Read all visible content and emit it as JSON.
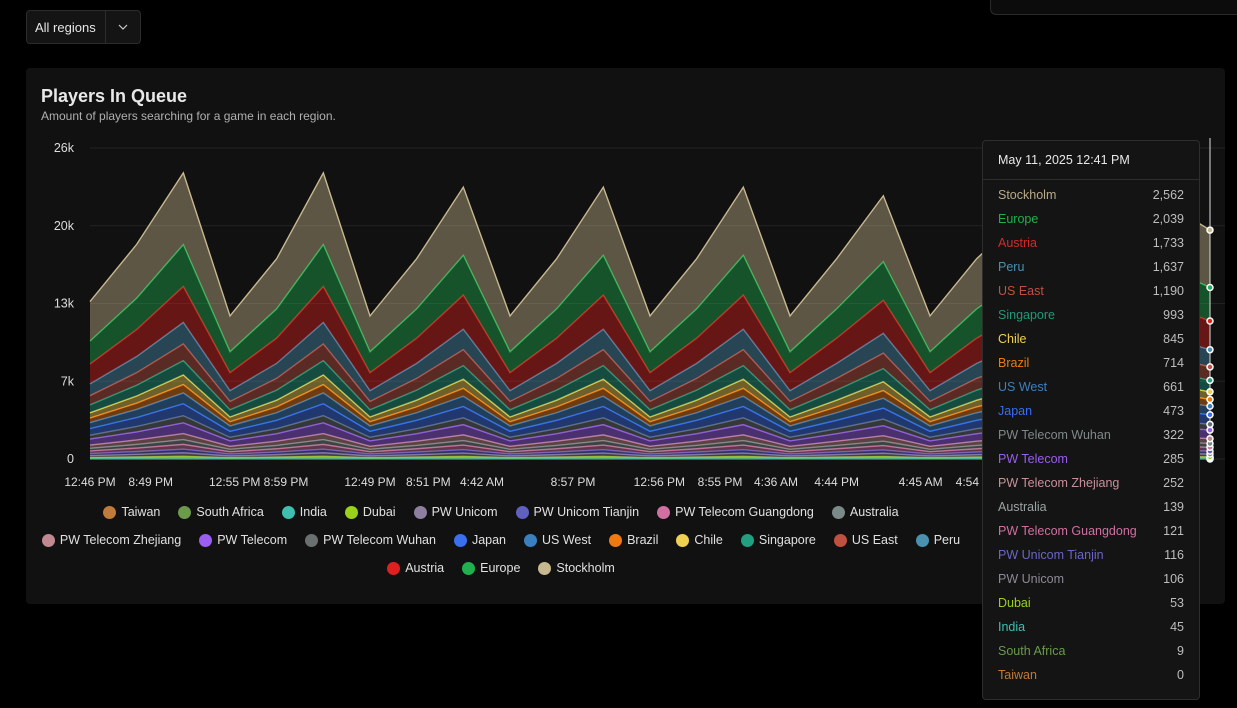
{
  "filter": {
    "label": "All regions",
    "icon": "chevron-down-icon"
  },
  "card": {
    "title": "Players In Queue",
    "subtitle": "Amount of players searching for a game in each region."
  },
  "tooltip": {
    "time": "May 11, 2025 12:41 PM",
    "rows": [
      {
        "name": "Stockholm",
        "value": "2,562",
        "color": "#b8ab8a"
      },
      {
        "name": "Europe",
        "value": "2,039",
        "color": "#22b04e"
      },
      {
        "name": "Austria",
        "value": "1,733",
        "color": "#d42a2a"
      },
      {
        "name": "Peru",
        "value": "1,637",
        "color": "#4a90b0"
      },
      {
        "name": "US East",
        "value": "1,190",
        "color": "#c05040"
      },
      {
        "name": "Singapore",
        "value": "993",
        "color": "#1f9a78"
      },
      {
        "name": "Chile",
        "value": "845",
        "color": "#f0d050"
      },
      {
        "name": "Brazil",
        "value": "714",
        "color": "#f07a10"
      },
      {
        "name": "US West",
        "value": "661",
        "color": "#3a80c0"
      },
      {
        "name": "Japan",
        "value": "473",
        "color": "#3a6ef0"
      },
      {
        "name": "PW Telecom Wuhan",
        "value": "322",
        "color": "#808888"
      },
      {
        "name": "PW Telecom",
        "value": "285",
        "color": "#9a5ef0"
      },
      {
        "name": "PW Telecom Zhejiang",
        "value": "252",
        "color": "#c8909a"
      },
      {
        "name": "Australia",
        "value": "139",
        "color": "#9aa4a2"
      },
      {
        "name": "PW Telecom Guangdong",
        "value": "121",
        "color": "#d070a0"
      },
      {
        "name": "PW Unicom Tianjin",
        "value": "116",
        "color": "#6a66c8"
      },
      {
        "name": "PW Unicom",
        "value": "106",
        "color": "#8e8a96"
      },
      {
        "name": "Dubai",
        "value": "53",
        "color": "#9ad21a"
      },
      {
        "name": "India",
        "value": "45",
        "color": "#3fbfb0"
      },
      {
        "name": "South Africa",
        "value": "9",
        "color": "#6a9a4a"
      },
      {
        "name": "Taiwan",
        "value": "0",
        "color": "#c07a3a"
      }
    ]
  },
  "chart_data": {
    "type": "area",
    "stacked": true,
    "title": "Players In Queue",
    "subtitle": "Amount of players searching for a game in each region.",
    "ylim": [
      0,
      26000
    ],
    "y_ticks": [
      {
        "value": 0,
        "label": "0"
      },
      {
        "value": 6500,
        "label": "7k"
      },
      {
        "value": 13000,
        "label": "13k"
      },
      {
        "value": 19500,
        "label": "20k"
      },
      {
        "value": 26000,
        "label": "26k"
      }
    ],
    "x_ticks": [
      {
        "at": 0,
        "label": "12:46 PM"
      },
      {
        "at": 1.3,
        "label": "8:49 PM"
      },
      {
        "at": 3.1,
        "label": "12:55 PM"
      },
      {
        "at": 4.2,
        "label": "8:59 PM"
      },
      {
        "at": 6.0,
        "label": "12:49 PM"
      },
      {
        "at": 7.25,
        "label": "8:51 PM"
      },
      {
        "at": 8.4,
        "label": "4:42 AM"
      },
      {
        "at": 10.35,
        "label": "8:57 PM"
      },
      {
        "at": 12.2,
        "label": "12:56 PM"
      },
      {
        "at": 13.5,
        "label": "8:55 PM"
      },
      {
        "at": 14.7,
        "label": "4:36 AM"
      },
      {
        "at": 16.0,
        "label": "4:44 PM"
      },
      {
        "at": 17.8,
        "label": "4:45 AM"
      },
      {
        "at": 18.8,
        "label": "4:54"
      }
    ],
    "grid": true,
    "legend": "bottom",
    "series": [
      {
        "name": "Taiwan",
        "color": "#c07a3a",
        "values": [
          2,
          2,
          2,
          2,
          2,
          2,
          2,
          2,
          2,
          2,
          2,
          2,
          2,
          2,
          2,
          2,
          2,
          2,
          2,
          2,
          2,
          2,
          2,
          2,
          2
        ]
      },
      {
        "name": "South Africa",
        "color": "#6a9a4a",
        "values": [
          11,
          15,
          20,
          10,
          14,
          20,
          10,
          14,
          19,
          10,
          14,
          19,
          10,
          14,
          19,
          10,
          14,
          18,
          10,
          14,
          17,
          10,
          14,
          18,
          16
        ]
      },
      {
        "name": "India",
        "color": "#3fbfb0",
        "values": [
          55,
          75,
          100,
          50,
          70,
          100,
          50,
          70,
          95,
          50,
          70,
          95,
          50,
          70,
          95,
          50,
          70,
          92,
          50,
          70,
          85,
          50,
          70,
          90,
          80
        ]
      },
      {
        "name": "Dubai",
        "color": "#9ad21a",
        "values": [
          55,
          75,
          100,
          50,
          70,
          100,
          50,
          70,
          95,
          50,
          70,
          95,
          50,
          70,
          95,
          50,
          70,
          92,
          50,
          70,
          85,
          50,
          70,
          90,
          80
        ]
      },
      {
        "name": "PW Unicom",
        "color": "#8e7fa0",
        "values": [
          165,
          225,
          300,
          150,
          210,
          300,
          150,
          210,
          285,
          150,
          210,
          285,
          150,
          210,
          285,
          150,
          210,
          276,
          150,
          210,
          255,
          150,
          210,
          270,
          240
        ]
      },
      {
        "name": "PW Unicom Tianjin",
        "color": "#6060c0",
        "values": [
          165,
          225,
          300,
          150,
          210,
          300,
          150,
          210,
          285,
          150,
          210,
          285,
          150,
          210,
          285,
          150,
          210,
          276,
          150,
          210,
          255,
          150,
          210,
          270,
          240
        ]
      },
      {
        "name": "PW Telecom Guangdong",
        "color": "#d070a0",
        "values": [
          220,
          300,
          400,
          200,
          280,
          400,
          200,
          280,
          380,
          200,
          280,
          380,
          200,
          280,
          380,
          200,
          280,
          368,
          200,
          280,
          340,
          200,
          280,
          360,
          320
        ]
      },
      {
        "name": "Australia",
        "color": "#7a8a88",
        "values": [
          220,
          300,
          400,
          200,
          280,
          400,
          200,
          280,
          380,
          200,
          280,
          380,
          200,
          280,
          380,
          200,
          280,
          368,
          200,
          280,
          340,
          200,
          280,
          360,
          320
        ]
      },
      {
        "name": "PW Telecom Zhejiang",
        "color": "#c08890",
        "values": [
          275,
          375,
          500,
          250,
          350,
          500,
          250,
          350,
          475,
          250,
          350,
          475,
          250,
          350,
          475,
          250,
          350,
          460,
          250,
          350,
          425,
          250,
          350,
          450,
          400
        ]
      },
      {
        "name": "PW Telecom",
        "color": "#9a5ef0",
        "values": [
          495,
          675,
          900,
          450,
          630,
          900,
          450,
          630,
          855,
          450,
          630,
          855,
          450,
          630,
          855,
          450,
          630,
          828,
          450,
          630,
          765,
          450,
          630,
          810,
          720
        ]
      },
      {
        "name": "PW Telecom Wuhan",
        "color": "#6a7070",
        "values": [
          330,
          450,
          600,
          300,
          420,
          600,
          300,
          420,
          570,
          300,
          420,
          570,
          300,
          420,
          570,
          300,
          420,
          552,
          300,
          420,
          510,
          300,
          420,
          540,
          480
        ]
      },
      {
        "name": "Japan",
        "color": "#3a70f0",
        "values": [
          550,
          750,
          1000,
          500,
          700,
          1000,
          500,
          700,
          950,
          500,
          700,
          950,
          500,
          700,
          950,
          500,
          700,
          920,
          500,
          700,
          850,
          500,
          700,
          900,
          800
        ]
      },
      {
        "name": "US West",
        "color": "#3a80c0",
        "values": [
          495,
          675,
          900,
          450,
          630,
          900,
          450,
          630,
          855,
          450,
          630,
          855,
          450,
          630,
          855,
          450,
          630,
          828,
          450,
          630,
          765,
          450,
          630,
          810,
          720
        ]
      },
      {
        "name": "Brazil",
        "color": "#f07a10",
        "values": [
          385,
          525,
          700,
          350,
          490,
          700,
          350,
          490,
          665,
          350,
          490,
          665,
          350,
          490,
          665,
          350,
          490,
          644,
          350,
          490,
          595,
          350,
          490,
          630,
          560
        ]
      },
      {
        "name": "Chile",
        "color": "#f0d050",
        "values": [
          440,
          600,
          800,
          400,
          560,
          800,
          400,
          560,
          760,
          400,
          560,
          760,
          400,
          560,
          760,
          400,
          560,
          736,
          400,
          560,
          680,
          400,
          560,
          720,
          640
        ]
      },
      {
        "name": "Singapore",
        "color": "#20a080",
        "values": [
          660,
          900,
          1200,
          600,
          840,
          1200,
          600,
          840,
          1140,
          600,
          840,
          1140,
          600,
          840,
          1140,
          600,
          840,
          1104,
          600,
          840,
          1020,
          600,
          840,
          1080,
          960
        ]
      },
      {
        "name": "US East",
        "color": "#c05040",
        "values": [
          770,
          1050,
          1400,
          700,
          980,
          1400,
          700,
          980,
          1330,
          700,
          980,
          1330,
          700,
          980,
          1330,
          700,
          980,
          1288,
          700,
          980,
          1190,
          700,
          980,
          1260,
          1120
        ]
      },
      {
        "name": "Peru",
        "color": "#4a90b0",
        "values": [
          990,
          1350,
          1800,
          900,
          1260,
          1800,
          900,
          1260,
          1710,
          900,
          1260,
          1710,
          900,
          1260,
          1710,
          900,
          1260,
          1656,
          900,
          1260,
          1530,
          900,
          1260,
          1620,
          1440
        ]
      },
      {
        "name": "Austria",
        "color": "#e02020",
        "values": [
          1650,
          2250,
          3000,
          1500,
          2100,
          3000,
          1500,
          2100,
          2850,
          1500,
          2100,
          2850,
          1500,
          2100,
          2850,
          1500,
          2100,
          2760,
          1500,
          2100,
          2550,
          1500,
          2100,
          2700,
          2400
        ]
      },
      {
        "name": "Europe",
        "color": "#20b050",
        "values": [
          1925,
          2625,
          3500,
          1750,
          2450,
          3500,
          1750,
          2450,
          3325,
          1750,
          2450,
          3325,
          1750,
          2450,
          3325,
          1750,
          2450,
          3220,
          1750,
          2450,
          2975,
          1750,
          2450,
          3150,
          2800
        ]
      },
      {
        "name": "Stockholm",
        "color": "#c8b890",
        "values": [
          3300,
          4500,
          6000,
          3000,
          4200,
          6000,
          3000,
          4200,
          5700,
          3000,
          4200,
          5700,
          3000,
          4200,
          5700,
          3000,
          4200,
          5520,
          3000,
          4200,
          5100,
          3000,
          4200,
          5400,
          4800
        ]
      }
    ]
  }
}
